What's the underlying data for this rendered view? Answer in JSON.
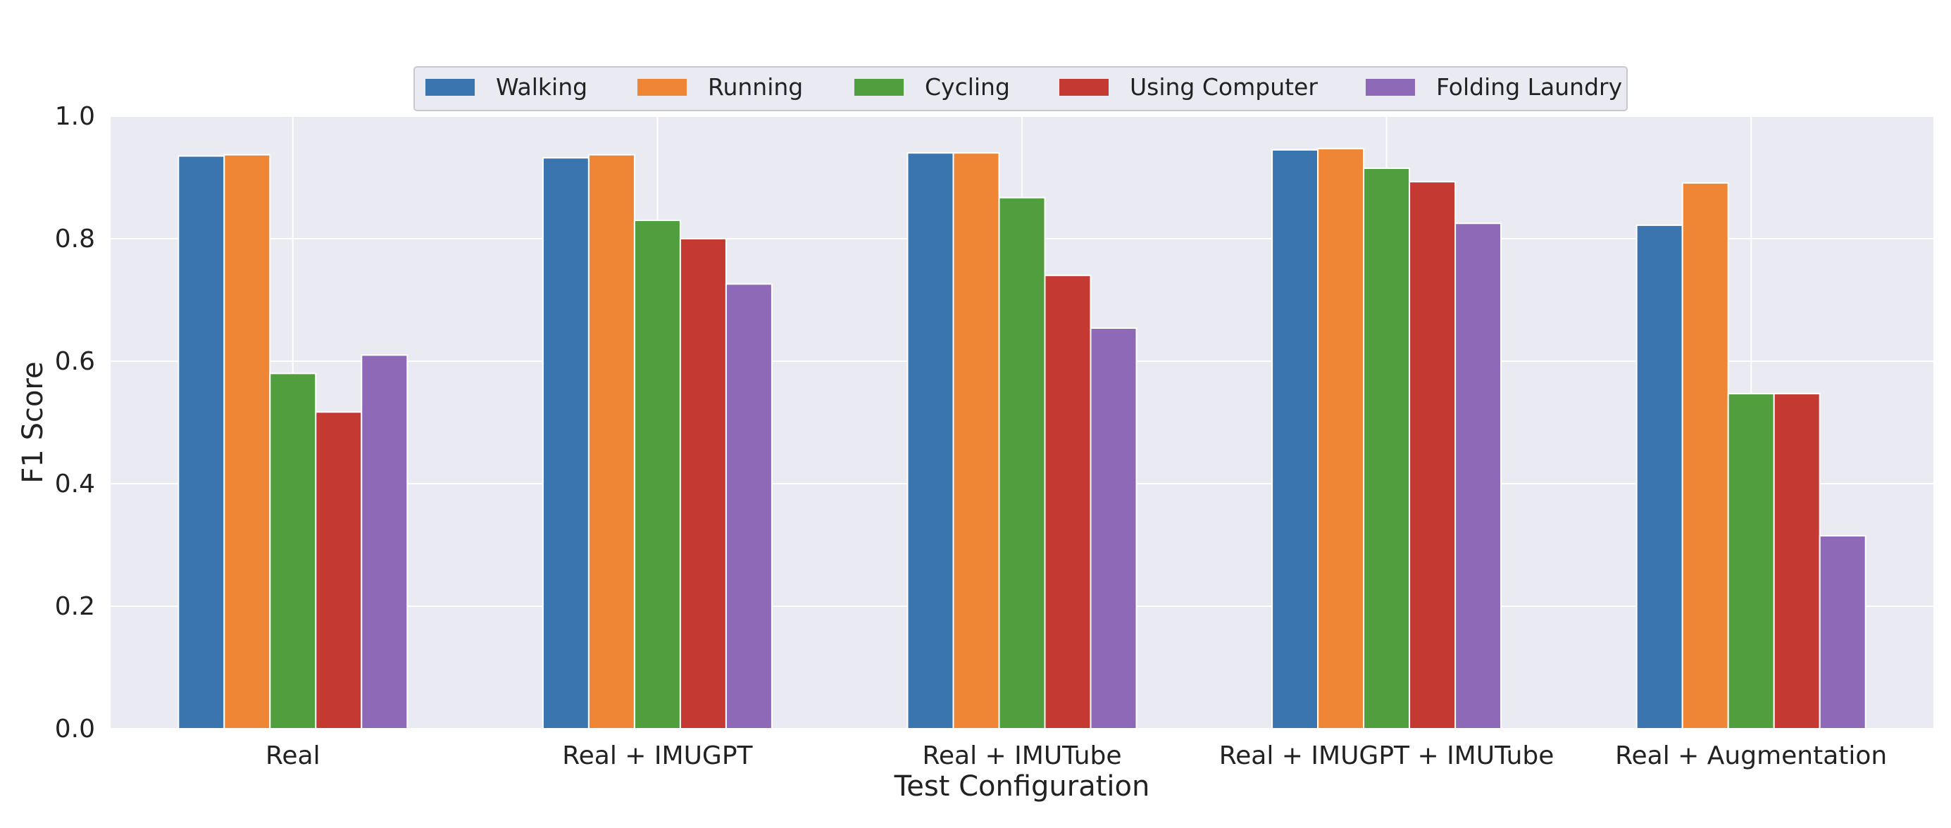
{
  "chart_data": {
    "type": "bar",
    "title": "",
    "xlabel": "Test Configuration",
    "ylabel": "F1 Score",
    "ylim": [
      0,
      1.0
    ],
    "yticks": [
      "0.0",
      "0.2",
      "0.4",
      "0.6",
      "0.8",
      "1.0"
    ],
    "grid": true,
    "legend_position": "top-center",
    "categories": [
      "Real",
      "Real + IMUGPT",
      "Real + IMUTube",
      "Real + IMUGPT + IMUTube",
      "Real + Augmentation"
    ],
    "series": [
      {
        "name": "Walking",
        "color": "#3b75af",
        "values": [
          0.935,
          0.932,
          0.94,
          0.945,
          0.822
        ]
      },
      {
        "name": "Running",
        "color": "#ef8636",
        "values": [
          0.937,
          0.937,
          0.94,
          0.947,
          0.891
        ]
      },
      {
        "name": "Cycling",
        "color": "#519e3e",
        "values": [
          0.58,
          0.83,
          0.867,
          0.915,
          0.547
        ]
      },
      {
        "name": "Using Computer",
        "color": "#c43932",
        "values": [
          0.517,
          0.8,
          0.74,
          0.893,
          0.547
        ]
      },
      {
        "name": "Folding Laundry",
        "color": "#8d69b8",
        "values": [
          0.61,
          0.726,
          0.654,
          0.825,
          0.315
        ]
      }
    ],
    "plot_background": "#eaeaf2",
    "grid_color": "#ffffff"
  }
}
